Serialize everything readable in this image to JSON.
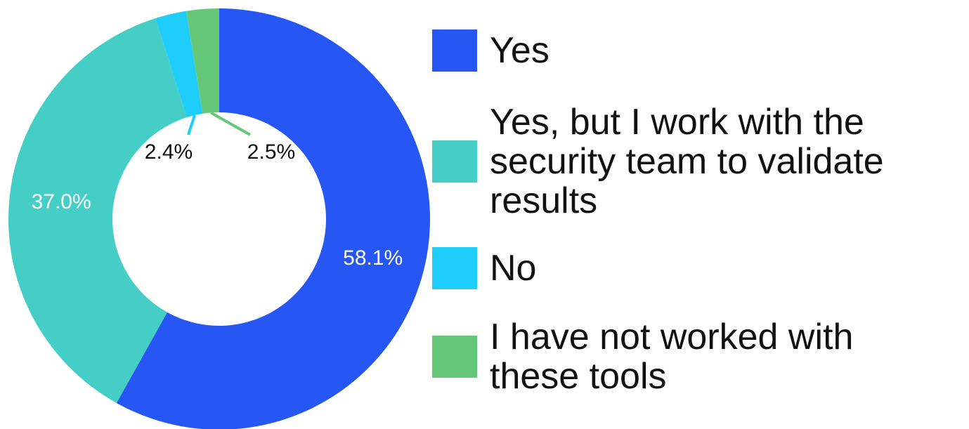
{
  "chart_data": {
    "type": "pie",
    "donut": true,
    "title": "",
    "legend_position": "right",
    "slices": [
      {
        "label": "Yes",
        "value": 58.1,
        "value_label": "58.1%",
        "color": "#2657f5",
        "label_color": "#ffffff"
      },
      {
        "label": "Yes, but I work with the security team to validate results",
        "value": 37.0,
        "value_label": "37.0%",
        "color": "#45cec5",
        "label_color": "#ffffff"
      },
      {
        "label": "No",
        "value": 2.4,
        "value_label": "2.4%",
        "color": "#1fcdfb",
        "label_color": "#111111"
      },
      {
        "label": "I have not worked with these tools",
        "value": 2.5,
        "value_label": "2.5%",
        "color": "#64c878",
        "label_color": "#111111"
      }
    ]
  }
}
